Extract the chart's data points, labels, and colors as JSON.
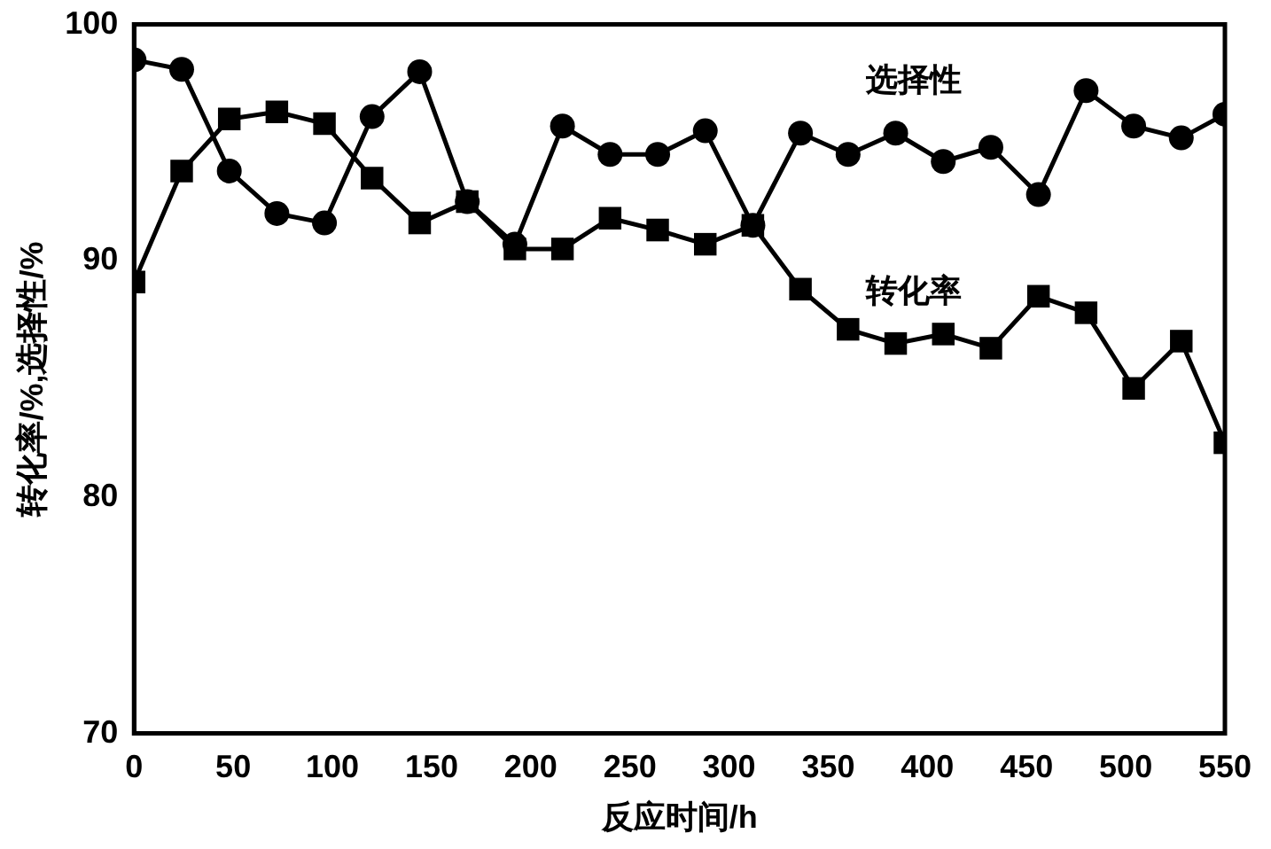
{
  "chart_data": {
    "type": "line",
    "xlabel": "反应时间/h",
    "ylabel": "转化率/%,选择性/%",
    "x": [
      0,
      24,
      48,
      72,
      96,
      120,
      144,
      168,
      192,
      216,
      240,
      264,
      288,
      312,
      336,
      360,
      384,
      408,
      432,
      456,
      480,
      504,
      528,
      550
    ],
    "series": [
      {
        "name": "选择性",
        "color": "#000000",
        "marker": "circle",
        "values": [
          98.5,
          98.1,
          93.8,
          92.0,
          91.6,
          96.1,
          98.0,
          92.5,
          90.7,
          95.7,
          94.5,
          94.5,
          95.5,
          91.5,
          95.4,
          94.5,
          95.4,
          94.2,
          94.8,
          92.8,
          97.2,
          95.7,
          95.2,
          96.2
        ]
      },
      {
        "name": "转化率",
        "color": "#000000",
        "marker": "square",
        "values": [
          89.1,
          93.8,
          96.0,
          96.3,
          95.8,
          93.5,
          91.6,
          92.5,
          90.5,
          90.5,
          91.8,
          91.3,
          90.7,
          91.5,
          88.8,
          87.1,
          86.5,
          86.9,
          86.3,
          88.5,
          87.8,
          84.6,
          86.6,
          82.3
        ]
      }
    ],
    "xlim": [
      0,
      550
    ],
    "xticks": [
      0,
      50,
      100,
      150,
      200,
      250,
      300,
      350,
      400,
      450,
      500,
      550
    ],
    "ylim": [
      70,
      100
    ],
    "yticks": [
      70,
      80,
      90,
      100
    ],
    "grid": false,
    "legend": false,
    "line_style": "solid"
  }
}
